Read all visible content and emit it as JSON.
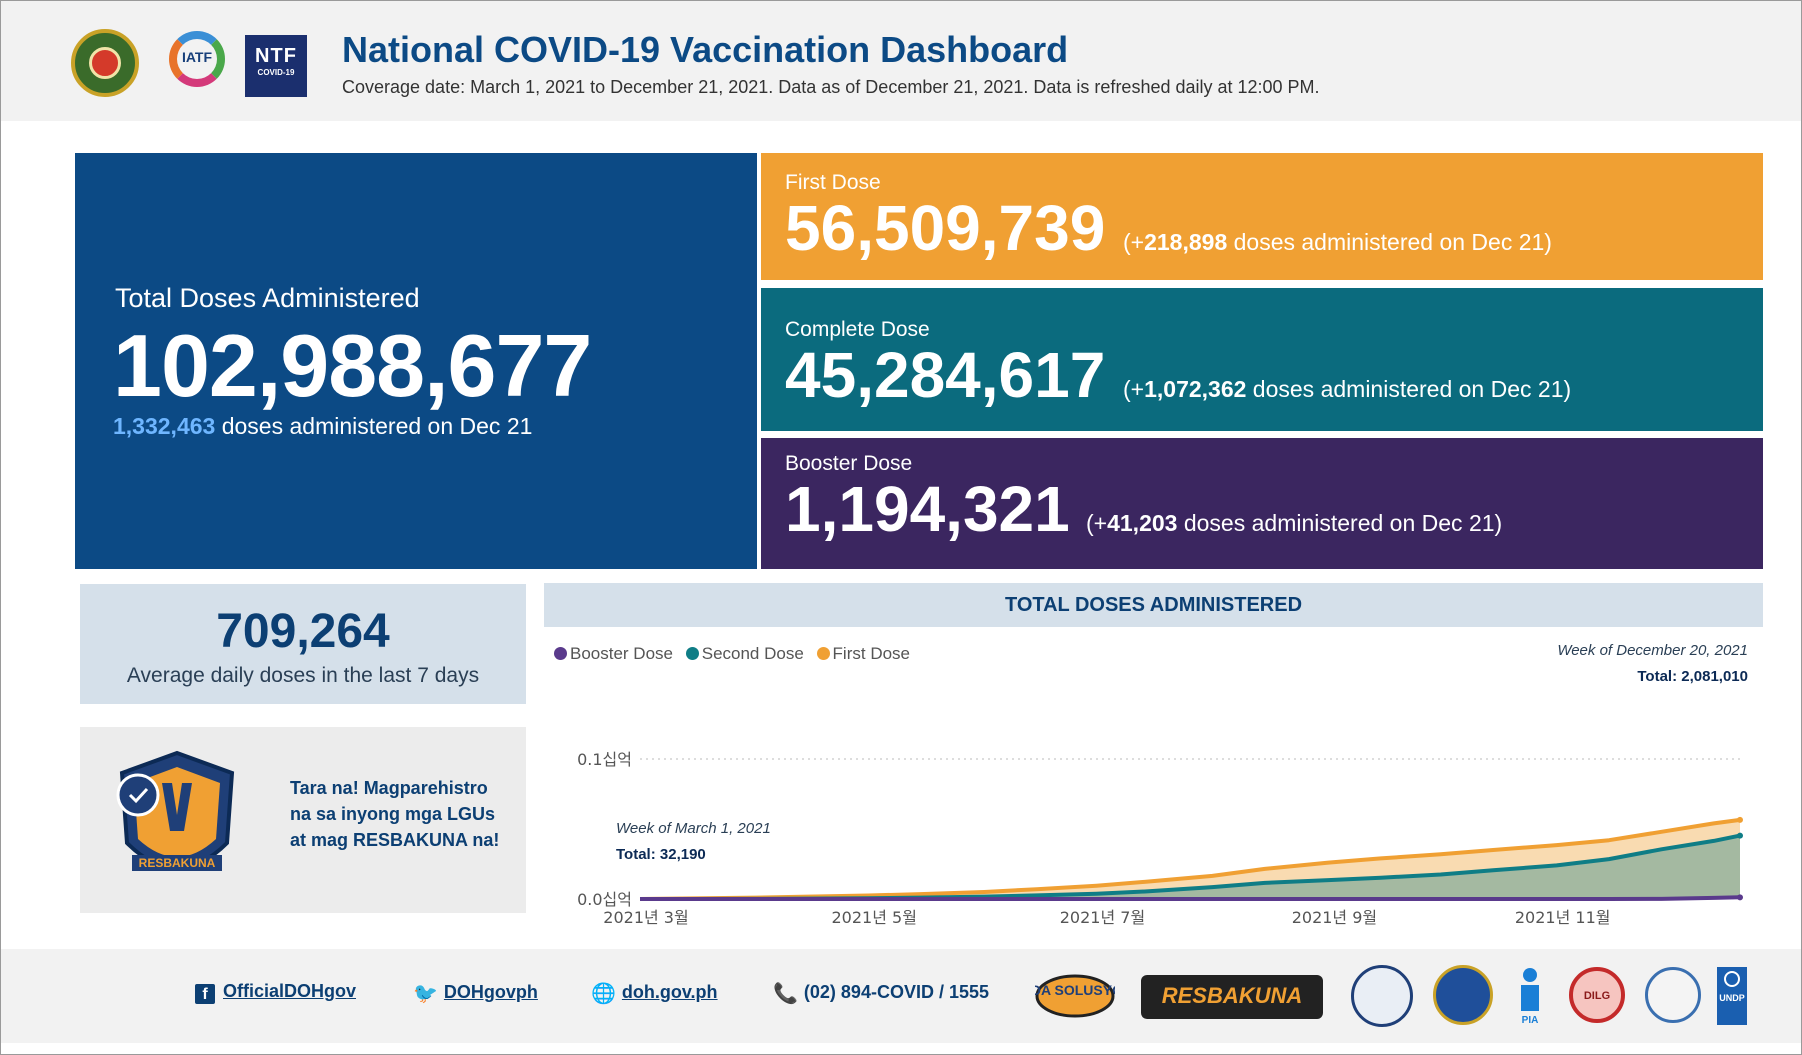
{
  "header": {
    "iatf_label": "IATF",
    "ntf_label": "NTF",
    "ntf_sub": "COVID-19",
    "title": "National COVID-19 Vaccination Dashboard",
    "subtitle": "Coverage date: March 1, 2021 to December 21, 2021. Data as of December 21, 2021. Data is refreshed daily at 12:00 PM."
  },
  "total": {
    "label": "Total Doses Administered",
    "value": "102,988,677",
    "daily": "1,332,463",
    "daily_suffix": " doses administered on Dec 21"
  },
  "first": {
    "label": "First Dose",
    "value": "56,509,739",
    "inc_prefix": "(+",
    "inc": "218,898",
    "inc_suffix": " doses administered on Dec 21)"
  },
  "complete": {
    "label": "Complete Dose",
    "value": "45,284,617",
    "inc_prefix": "(+",
    "inc": "1,072,362",
    "inc_suffix": " doses administered on Dec 21)"
  },
  "booster": {
    "label": "Booster Dose",
    "value": "1,194,321",
    "inc_prefix": "(+",
    "inc": "41,203",
    "inc_suffix": " doses administered on Dec 21)"
  },
  "average": {
    "value": "709,264",
    "label": "Average daily doses in the last 7 days"
  },
  "promo": {
    "text": "Tara na! Magparehistro na sa inyong mga LGUs at mag RESBAKUNA na!"
  },
  "chart_data": {
    "type": "area",
    "title": "TOTAL DOSES ADMINISTERED",
    "legend": [
      "Booster Dose",
      "Second Dose",
      "First Dose"
    ],
    "legend_placement": "top-left",
    "x_tick_labels": [
      "2021년 3월",
      "2021년 5월",
      "2021년 7월",
      "2021년 9월",
      "2021년 11월"
    ],
    "y_tick_labels": [
      "0.0십억",
      "0.1십억"
    ],
    "ylim": [
      0,
      100000000
    ],
    "grid": false,
    "x": [
      "2021-03-01",
      "2021-03-15",
      "2021-04-01",
      "2021-04-15",
      "2021-05-01",
      "2021-05-15",
      "2021-06-01",
      "2021-06-15",
      "2021-07-01",
      "2021-07-15",
      "2021-08-01",
      "2021-08-15",
      "2021-09-01",
      "2021-09-15",
      "2021-10-01",
      "2021-10-15",
      "2021-11-01",
      "2021-11-15",
      "2021-11-29",
      "2021-12-13",
      "2021-12-20"
    ],
    "series": [
      {
        "name": "Booster Dose",
        "color": "#5a3a8c",
        "values": [
          0,
          0,
          0,
          0,
          0,
          0,
          0,
          0,
          0,
          0,
          0,
          0,
          0,
          0,
          0,
          0,
          0,
          0,
          100000,
          800000,
          1194321
        ]
      },
      {
        "name": "Second Dose",
        "color": "#0f7d86",
        "values": [
          0,
          10000,
          100000,
          300000,
          600000,
          1000000,
          1700000,
          2600000,
          3800000,
          5500000,
          8500000,
          11500000,
          13500000,
          15200000,
          17500000,
          20500000,
          24000000,
          28500000,
          35500000,
          41500000,
          45284617
        ]
      },
      {
        "name": "First Dose",
        "color": "#f0a033",
        "values": [
          32190,
          400000,
          1000000,
          1700000,
          2500000,
          3500000,
          5000000,
          7000000,
          9500000,
          12500000,
          16500000,
          21500000,
          26000000,
          29000000,
          32000000,
          35000000,
          38500000,
          42000000,
          48000000,
          54000000,
          56509739
        ]
      }
    ],
    "annotations": [
      {
        "label": "Week of March 1, 2021",
        "total_label": "Total: 32,190"
      },
      {
        "label": "Week of December 20, 2021",
        "total_label": "Total: 2,081,010"
      }
    ]
  },
  "footer": {
    "facebook": "OfficialDOHgov",
    "twitter": "DOHgovph",
    "website": "doh.gov.ph",
    "phone": "(02) 894-COVID / 1555",
    "partner_logos": [
      "BIDA SOLUSYON",
      "RESBAKUNA",
      "DILG",
      "PIA",
      "UNDP"
    ]
  }
}
